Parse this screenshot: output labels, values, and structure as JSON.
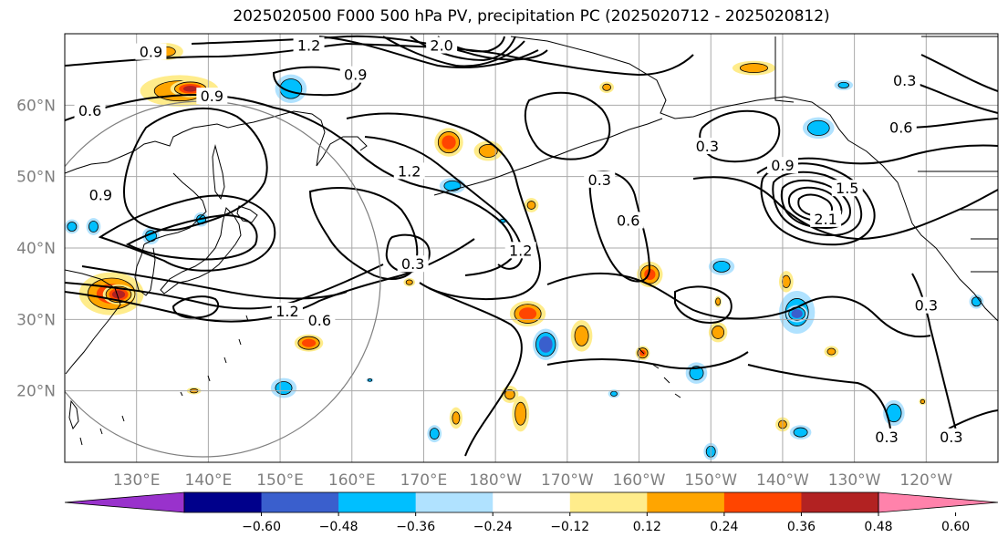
{
  "title": "2025020500 F000 500 hPa PV, precipitation PC (2025020712 - 2025020812)",
  "lat_labels": [
    {
      "text": "60°N",
      "lat": 60
    },
    {
      "text": "50°N",
      "lat": 50
    },
    {
      "text": "40°N",
      "lat": 40
    },
    {
      "text": "30°N",
      "lat": 30
    },
    {
      "text": "20°N",
      "lat": 20
    }
  ],
  "lon_labels": [
    {
      "text": "130°E",
      "lon": 130
    },
    {
      "text": "140°E",
      "lon": 140
    },
    {
      "text": "150°E",
      "lon": 150
    },
    {
      "text": "160°E",
      "lon": 160
    },
    {
      "text": "170°E",
      "lon": 170
    },
    {
      "text": "180°W",
      "lon": 180
    },
    {
      "text": "170°W",
      "lon": 190
    },
    {
      "text": "160°W",
      "lon": 200
    },
    {
      "text": "150°W",
      "lon": 210
    },
    {
      "text": "140°W",
      "lon": 220
    },
    {
      "text": "130°W",
      "lon": 230
    },
    {
      "text": "120°W",
      "lon": 240
    }
  ],
  "colorbar": {
    "colors": [
      "#9932cc",
      "#00008b",
      "#3a5fcd",
      "#00bfff",
      "#b0e2ff",
      "#ffffff",
      "#ffec8b",
      "#ffa500",
      "#ff4500",
      "#b22222",
      "#ff82ab"
    ],
    "ticks": [
      "−0.60",
      "−0.48",
      "−0.36",
      "−0.24",
      "−0.12",
      "0.12",
      "0.24",
      "0.36",
      "0.48",
      "0.60"
    ]
  },
  "pv_labels": [
    {
      "text": "0.9",
      "lon": 132,
      "lat": 67.5
    },
    {
      "text": "1.2",
      "lon": 154,
      "lat": 68.4
    },
    {
      "text": "2.0",
      "lon": 172.5,
      "lat": 68.4
    },
    {
      "text": "0.9",
      "lon": 160.5,
      "lat": 64.3
    },
    {
      "text": "0.9",
      "lon": 140.5,
      "lat": 61.3
    },
    {
      "text": "0.6",
      "lon": 123.5,
      "lat": 59.3
    },
    {
      "text": "1.2",
      "lon": 168,
      "lat": 50.8
    },
    {
      "text": "0.9",
      "lon": 125,
      "lat": 47.5
    },
    {
      "text": "0.3",
      "lon": 168.5,
      "lat": 37.8
    },
    {
      "text": "1.2",
      "lon": 183.5,
      "lat": 39.7
    },
    {
      "text": "0.3",
      "lon": 194.5,
      "lat": 49.6
    },
    {
      "text": "0.6",
      "lon": 198.5,
      "lat": 43.9
    },
    {
      "text": "0.3",
      "lon": 209.5,
      "lat": 54.3
    },
    {
      "text": "0.9",
      "lon": 220,
      "lat": 51.6
    },
    {
      "text": "0.6",
      "lon": 236.5,
      "lat": 56.9
    },
    {
      "text": "1.5",
      "lon": 229,
      "lat": 48.4
    },
    {
      "text": "2.1",
      "lon": 226,
      "lat": 44.1
    },
    {
      "text": "0.3",
      "lon": 237,
      "lat": 63.5
    },
    {
      "text": "0.6",
      "lon": 155.5,
      "lat": 29.9
    },
    {
      "text": "1.2",
      "lon": 151,
      "lat": 31.2
    },
    {
      "text": "0.3",
      "lon": 240,
      "lat": 32
    },
    {
      "text": "0.3",
      "lon": 234.5,
      "lat": 13.6
    },
    {
      "text": "0.3",
      "lon": 243.5,
      "lat": 13.6
    }
  ],
  "precip": {
    "positive": [
      {
        "lon": 136,
        "lat": 62,
        "rx": 5.5,
        "ry": 2.2,
        "level": 0.3
      },
      {
        "lon": 137.5,
        "lat": 62.3,
        "rx": 2.8,
        "ry": 1.2,
        "level": 0.5
      },
      {
        "lon": 134,
        "lat": 67.5,
        "rx": 2.5,
        "ry": 1.2,
        "level": 0.25
      },
      {
        "lon": 126.5,
        "lat": 33.6,
        "rx": 4.5,
        "ry": 3.0,
        "level": 0.4
      },
      {
        "lon": 127.5,
        "lat": 33.5,
        "rx": 2.2,
        "ry": 1.4,
        "level": 0.55
      },
      {
        "lon": 173.5,
        "lat": 54.8,
        "rx": 2.0,
        "ry": 2.0,
        "level": 0.42
      },
      {
        "lon": 179,
        "lat": 53.6,
        "rx": 2.0,
        "ry": 1.4,
        "level": 0.3
      },
      {
        "lon": 184.5,
        "lat": 30.8,
        "rx": 2.5,
        "ry": 1.8,
        "level": 0.42
      },
      {
        "lon": 192,
        "lat": 27.7,
        "rx": 1.5,
        "ry": 2.2,
        "level": 0.3
      },
      {
        "lon": 201.5,
        "lat": 36.3,
        "rx": 1.8,
        "ry": 1.8,
        "level": 0.38
      },
      {
        "lon": 154,
        "lat": 26.7,
        "rx": 2.0,
        "ry": 1.2,
        "level": 0.42
      },
      {
        "lon": 216,
        "lat": 65.2,
        "rx": 3.0,
        "ry": 1.0,
        "level": 0.3
      },
      {
        "lon": 183.5,
        "lat": 16.8,
        "rx": 1.2,
        "ry": 2.5,
        "level": 0.3
      },
      {
        "lon": 182,
        "lat": 19.5,
        "rx": 1.2,
        "ry": 1.2,
        "level": 0.25
      },
      {
        "lon": 174.5,
        "lat": 16.2,
        "rx": 0.9,
        "ry": 1.5,
        "level": 0.25
      },
      {
        "lon": 200.5,
        "lat": 25.3,
        "rx": 1.0,
        "ry": 1.0,
        "level": 0.38
      },
      {
        "lon": 211,
        "lat": 28.2,
        "rx": 1.3,
        "ry": 1.4,
        "level": 0.3
      },
      {
        "lon": 220.5,
        "lat": 35.3,
        "rx": 1.0,
        "ry": 1.5,
        "level": 0.25
      },
      {
        "lon": 226.8,
        "lat": 25.5,
        "rx": 1.0,
        "ry": 0.8,
        "level": 0.25
      },
      {
        "lon": 220,
        "lat": 15.3,
        "rx": 1.0,
        "ry": 1.0,
        "level": 0.25
      },
      {
        "lon": 185,
        "lat": 46,
        "rx": 1.0,
        "ry": 1.0,
        "level": 0.25
      },
      {
        "lon": 195.5,
        "lat": 62.5,
        "rx": 1.0,
        "ry": 0.8,
        "level": 0.25
      },
      {
        "lon": 168,
        "lat": 35.2,
        "rx": 0.8,
        "ry": 0.6,
        "level": 0.25
      },
      {
        "lon": 211,
        "lat": 32.5,
        "rx": 0.5,
        "ry": 0.8,
        "level": 0.3
      },
      {
        "lon": 239.5,
        "lat": 18.5,
        "rx": 0.5,
        "ry": 0.5,
        "level": 0.25
      },
      {
        "lon": 138,
        "lat": 20,
        "rx": 1.0,
        "ry": 0.5,
        "level": 0.25
      }
    ],
    "negative": [
      {
        "lon": 151.5,
        "lat": 62.3,
        "rx": 2.2,
        "ry": 2.0,
        "level": 0.35
      },
      {
        "lon": 174,
        "lat": 48.7,
        "rx": 1.8,
        "ry": 1.1,
        "level": 0.3
      },
      {
        "lon": 139,
        "lat": 44,
        "rx": 1.0,
        "ry": 1.0,
        "level": 0.3
      },
      {
        "lon": 124,
        "lat": 43,
        "rx": 1.0,
        "ry": 1.2,
        "level": 0.3
      },
      {
        "lon": 132,
        "lat": 41.7,
        "rx": 1.2,
        "ry": 1.2,
        "level": 0.3
      },
      {
        "lon": 187,
        "lat": 26.5,
        "rx": 1.8,
        "ry": 2.2,
        "level": 0.45
      },
      {
        "lon": 150.5,
        "lat": 20.4,
        "rx": 1.8,
        "ry": 1.4,
        "level": 0.3
      },
      {
        "lon": 211.5,
        "lat": 37.4,
        "rx": 1.8,
        "ry": 1.2,
        "level": 0.3
      },
      {
        "lon": 222,
        "lat": 31,
        "rx": 2.5,
        "ry": 3.0,
        "level": 0.3
      },
      {
        "lon": 222,
        "lat": 30.8,
        "rx": 1.5,
        "ry": 1.2,
        "level": 0.45
      },
      {
        "lon": 208,
        "lat": 22.5,
        "rx": 1.5,
        "ry": 1.5,
        "level": 0.3
      },
      {
        "lon": 235.5,
        "lat": 16.9,
        "rx": 1.5,
        "ry": 1.8,
        "level": 0.35
      },
      {
        "lon": 222.5,
        "lat": 14.2,
        "rx": 1.5,
        "ry": 1.0,
        "level": 0.3
      },
      {
        "lon": 225,
        "lat": 56.8,
        "rx": 2.2,
        "ry": 1.5,
        "level": 0.35
      },
      {
        "lon": 171.5,
        "lat": 14,
        "rx": 1.0,
        "ry": 1.2,
        "level": 0.3
      },
      {
        "lon": 210,
        "lat": 11.5,
        "rx": 1.0,
        "ry": 1.2,
        "level": 0.3
      },
      {
        "lon": 247,
        "lat": 32.5,
        "rx": 1.0,
        "ry": 1.0,
        "level": 0.3
      },
      {
        "lon": 121,
        "lat": 43,
        "rx": 1.0,
        "ry": 1.0,
        "level": 0.3
      },
      {
        "lon": 228.5,
        "lat": 62.8,
        "rx": 1.3,
        "ry": 0.7,
        "level": 0.25
      },
      {
        "lon": 181,
        "lat": 43.8,
        "rx": 0.7,
        "ry": 0.4,
        "level": 0.25
      },
      {
        "lon": 162.5,
        "lat": 21.5,
        "rx": 0.5,
        "ry": 0.3,
        "level": 0.25
      },
      {
        "lon": 196.5,
        "lat": 19.6,
        "rx": 0.8,
        "ry": 0.6,
        "level": 0.25
      }
    ]
  }
}
